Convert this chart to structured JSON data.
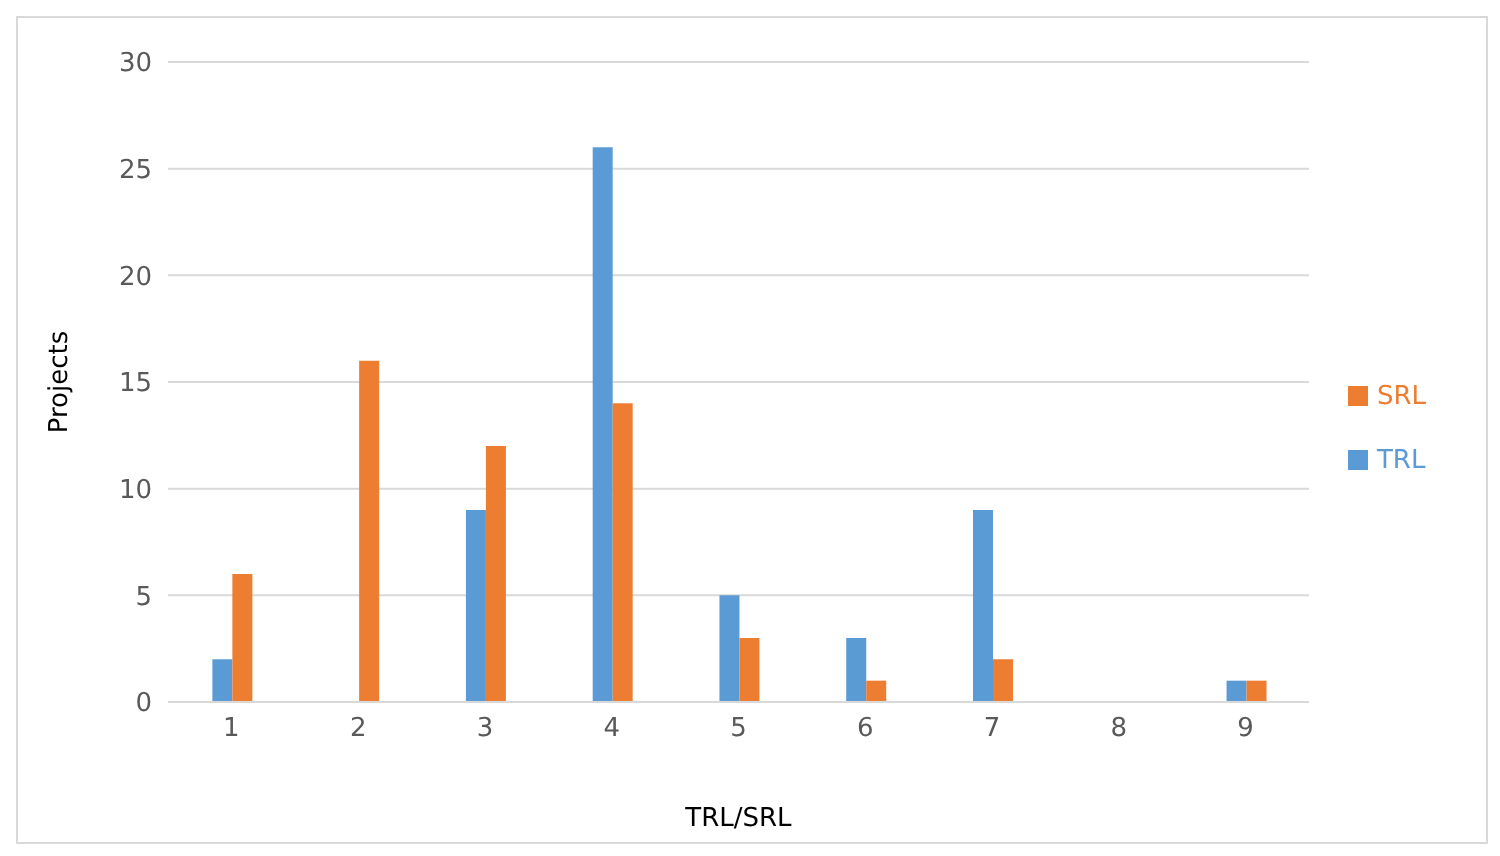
{
  "chart_data": {
    "type": "bar",
    "xlabel": "TRL/SRL",
    "ylabel": "Projects",
    "categories": [
      "1",
      "2",
      "3",
      "4",
      "5",
      "6",
      "7",
      "8",
      "9"
    ],
    "series": [
      {
        "name": "TRL",
        "color": "#5b9bd5",
        "values": [
          2,
          0,
          9,
          26,
          5,
          3,
          9,
          0,
          1
        ]
      },
      {
        "name": "SRL",
        "color": "#ed7d31",
        "values": [
          6,
          16,
          12,
          14,
          3,
          1,
          2,
          0,
          1
        ]
      }
    ],
    "ylim": [
      0,
      30
    ],
    "yticks": [
      0,
      5,
      10,
      15,
      20,
      25,
      30
    ],
    "grid": "y",
    "legend": "right"
  }
}
